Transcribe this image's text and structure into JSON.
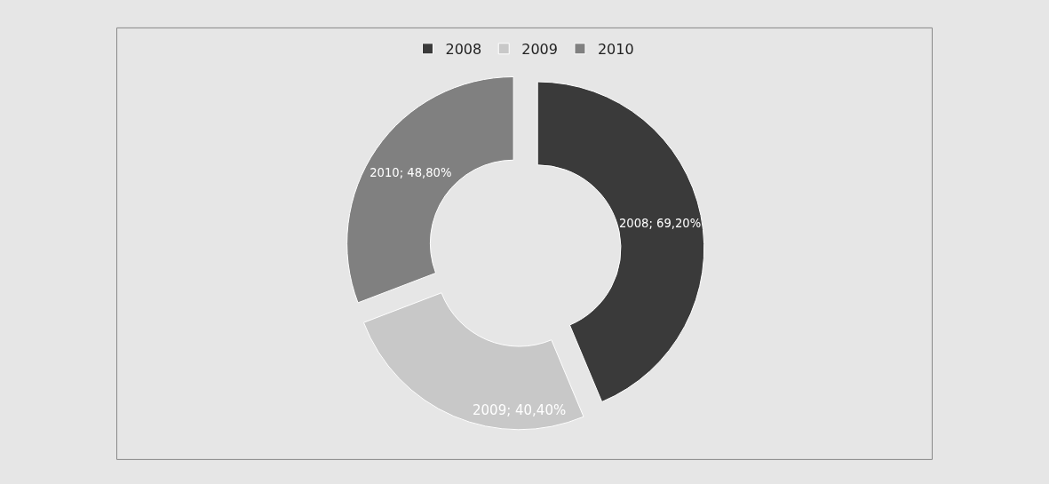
{
  "chart_data": {
    "type": "donut",
    "categories": [
      "2008",
      "2009",
      "2010"
    ],
    "values": [
      69.2,
      40.4,
      48.8
    ],
    "colors": [
      "#3a3a3a",
      "#c8c8c8",
      "#808080"
    ],
    "value_labels": [
      "2008; 69,20%",
      "2009; 40,40%",
      "2010; 48,80%"
    ],
    "legend": "top"
  }
}
